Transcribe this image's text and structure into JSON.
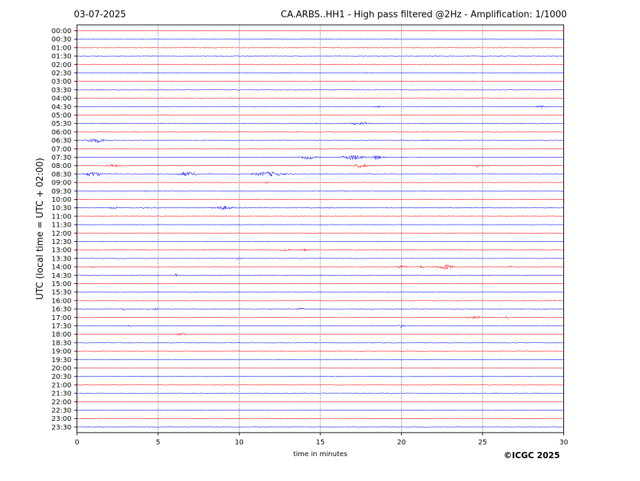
{
  "chart_data": {
    "type": "line",
    "date": "03-07-2025",
    "title": "CA.ARBS..HH1 - High pass filtered @2Hz - Amplification: 1/1000",
    "xlabel": "time in minutes",
    "ylabel": "UTC (local time = UTC + 02:00)",
    "copyright": "©ICGC 2025",
    "xlim": [
      0,
      30
    ],
    "x_ticks": [
      0,
      5,
      10,
      15,
      20,
      25,
      30
    ],
    "x_tick_labels": [
      "0",
      "5",
      "10",
      "15",
      "20",
      "25",
      "30"
    ],
    "grid": "vertical dotted at x ticks",
    "trace_colors": [
      "#ff0000",
      "#0000ff"
    ],
    "rows": [
      "00:00",
      "00:30",
      "01:00",
      "01:30",
      "02:00",
      "02:30",
      "03:00",
      "03:30",
      "04:00",
      "04:30",
      "05:00",
      "05:30",
      "06:00",
      "06:30",
      "07:00",
      "07:30",
      "08:00",
      "08:30",
      "09:00",
      "09:30",
      "10:00",
      "10:30",
      "11:00",
      "11:30",
      "12:00",
      "12:30",
      "13:00",
      "13:30",
      "14:00",
      "14:30",
      "15:00",
      "15:30",
      "16:00",
      "16:30",
      "17:00",
      "17:30",
      "18:00",
      "18:30",
      "19:00",
      "19:30",
      "20:00",
      "20:30",
      "21:00",
      "21:30",
      "22:00",
      "22:30",
      "23:00",
      "23:30"
    ],
    "bursts": [
      {
        "row": "00:00",
        "t": 28.5,
        "w": 0.4,
        "amp": 0.5
      },
      {
        "row": "04:30",
        "t": 18.6,
        "w": 0.3,
        "amp": 1.2
      },
      {
        "row": "04:30",
        "t": 28.6,
        "w": 0.4,
        "amp": 1.2
      },
      {
        "row": "05:30",
        "t": 17.5,
        "w": 0.8,
        "amp": 1.8
      },
      {
        "row": "06:30",
        "t": 0.8,
        "w": 0.5,
        "amp": 1.5
      },
      {
        "row": "06:30",
        "t": 1.3,
        "w": 0.6,
        "amp": 2.5
      },
      {
        "row": "06:30",
        "t": 21.5,
        "w": 0.3,
        "amp": 0.8
      },
      {
        "row": "07:30",
        "t": 14.3,
        "w": 0.6,
        "amp": 2.5
      },
      {
        "row": "07:30",
        "t": 17.0,
        "w": 0.8,
        "amp": 3.5
      },
      {
        "row": "07:30",
        "t": 18.5,
        "w": 0.5,
        "amp": 3.0
      },
      {
        "row": "08:00",
        "t": 2.2,
        "w": 0.6,
        "amp": 1.5
      },
      {
        "row": "08:00",
        "t": 17.5,
        "w": 0.5,
        "amp": 3.0
      },
      {
        "row": "08:00",
        "t": 24.7,
        "w": 0.3,
        "amp": 2.0
      },
      {
        "row": "08:30",
        "t": 1.0,
        "w": 0.7,
        "amp": 3.0
      },
      {
        "row": "08:30",
        "t": 6.8,
        "w": 0.8,
        "amp": 2.8
      },
      {
        "row": "08:30",
        "t": 11.8,
        "w": 1.2,
        "amp": 3.0
      },
      {
        "row": "09:00",
        "t": 11.7,
        "w": 0.2,
        "amp": 1.0
      },
      {
        "row": "10:30",
        "t": 2.3,
        "w": 0.4,
        "amp": 1.0
      },
      {
        "row": "10:30",
        "t": 4.2,
        "w": 0.3,
        "amp": 0.8
      },
      {
        "row": "10:30",
        "t": 9.0,
        "w": 0.8,
        "amp": 2.5
      },
      {
        "row": "10:30",
        "t": 15.7,
        "w": 0.2,
        "amp": 1.0
      },
      {
        "row": "13:00",
        "t": 12.8,
        "w": 0.5,
        "amp": 1.8
      },
      {
        "row": "13:00",
        "t": 14.0,
        "w": 0.4,
        "amp": 1.0
      },
      {
        "row": "13:00",
        "t": 8.8,
        "w": 0.2,
        "amp": 1.0
      },
      {
        "row": "13:30",
        "t": 10.0,
        "w": 0.2,
        "amp": 1.2
      },
      {
        "row": "14:00",
        "t": 1.0,
        "w": 0.3,
        "amp": 1.0
      },
      {
        "row": "14:00",
        "t": 20.0,
        "w": 0.4,
        "amp": 2.0
      },
      {
        "row": "14:00",
        "t": 21.2,
        "w": 0.3,
        "amp": 1.8
      },
      {
        "row": "14:00",
        "t": 22.7,
        "w": 0.6,
        "amp": 3.5
      },
      {
        "row": "14:00",
        "t": 26.7,
        "w": 0.2,
        "amp": 1.2
      },
      {
        "row": "14:30",
        "t": 6.1,
        "w": 0.1,
        "amp": 3.0
      },
      {
        "row": "16:30",
        "t": 2.9,
        "w": 0.3,
        "amp": 1.2
      },
      {
        "row": "16:30",
        "t": 4.9,
        "w": 0.2,
        "amp": 1.5
      },
      {
        "row": "16:30",
        "t": 13.8,
        "w": 0.3,
        "amp": 1.0
      },
      {
        "row": "17:00",
        "t": 24.5,
        "w": 0.6,
        "amp": 1.8
      },
      {
        "row": "17:00",
        "t": 26.5,
        "w": 0.2,
        "amp": 1.2
      },
      {
        "row": "17:30",
        "t": 3.2,
        "w": 0.3,
        "amp": 0.8
      },
      {
        "row": "17:30",
        "t": 20.0,
        "w": 0.2,
        "amp": 2.0
      },
      {
        "row": "18:00",
        "t": 6.5,
        "w": 0.5,
        "amp": 1.5
      }
    ]
  }
}
